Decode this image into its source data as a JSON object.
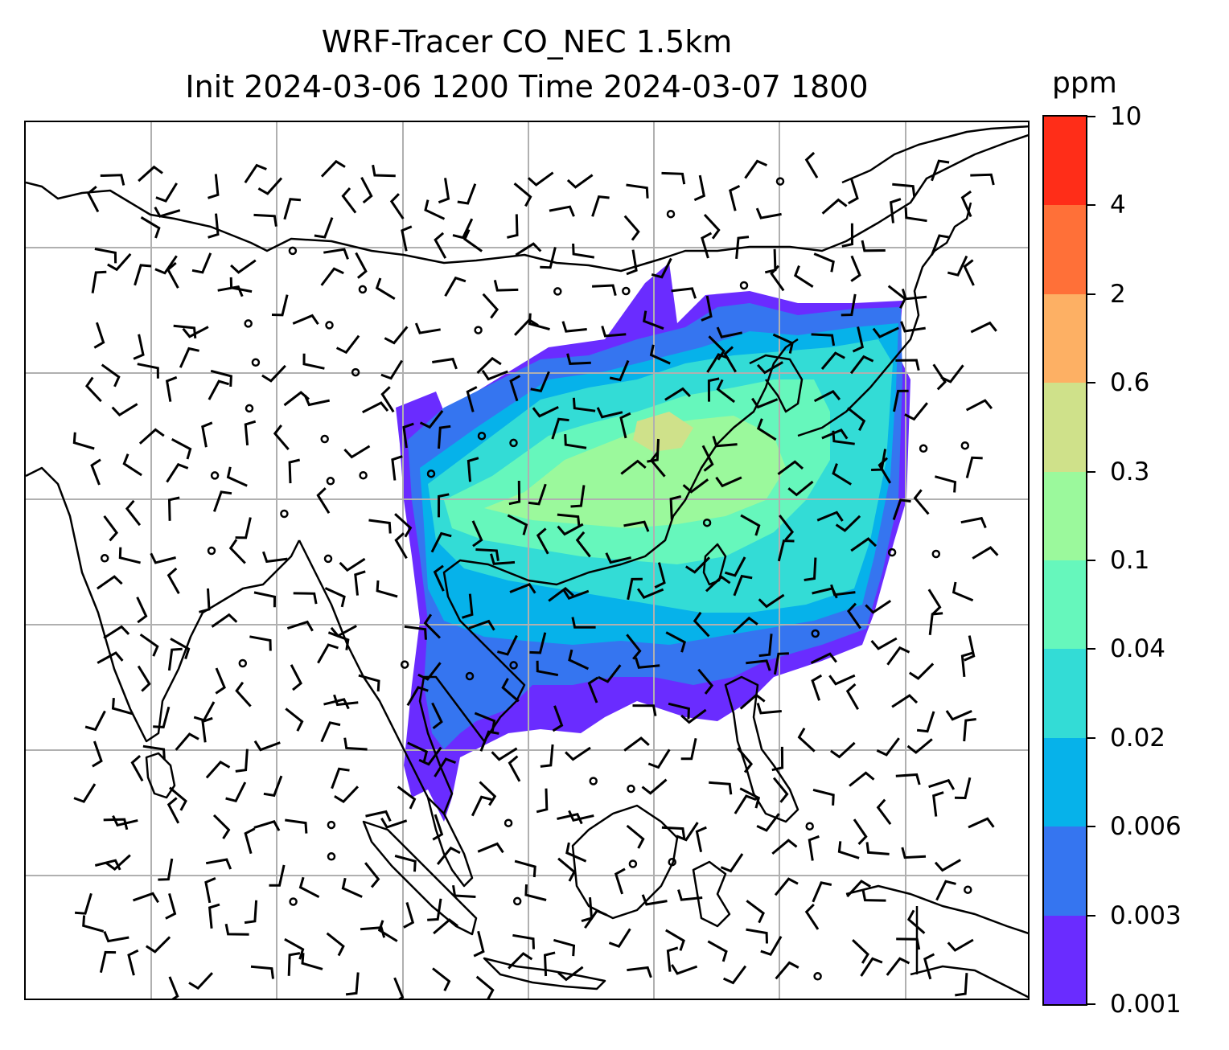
{
  "title_line1": "WRF-Tracer CO_NEC 1.5km",
  "title_line2": "Init 2024-03-06 1200 Time 2024-03-07 1800",
  "colorbar": {
    "units": "ppm",
    "tick_labels": [
      "0.001",
      "0.003",
      "0.006",
      "0.02",
      "0.04",
      "0.1",
      "0.3",
      "0.6",
      "2",
      "4",
      "10"
    ],
    "colors": [
      "#6a2cff",
      "#3575f0",
      "#06b2ea",
      "#33dcd6",
      "#66f7bc",
      "#9bf99c",
      "#cfe18a",
      "#fdb064",
      "#ff7038",
      "#ff2d18"
    ]
  },
  "map": {
    "gridlines": "on",
    "grid_color": "#b0b0b0",
    "wind_barbs": "black",
    "coastline_color": "#000000"
  }
}
